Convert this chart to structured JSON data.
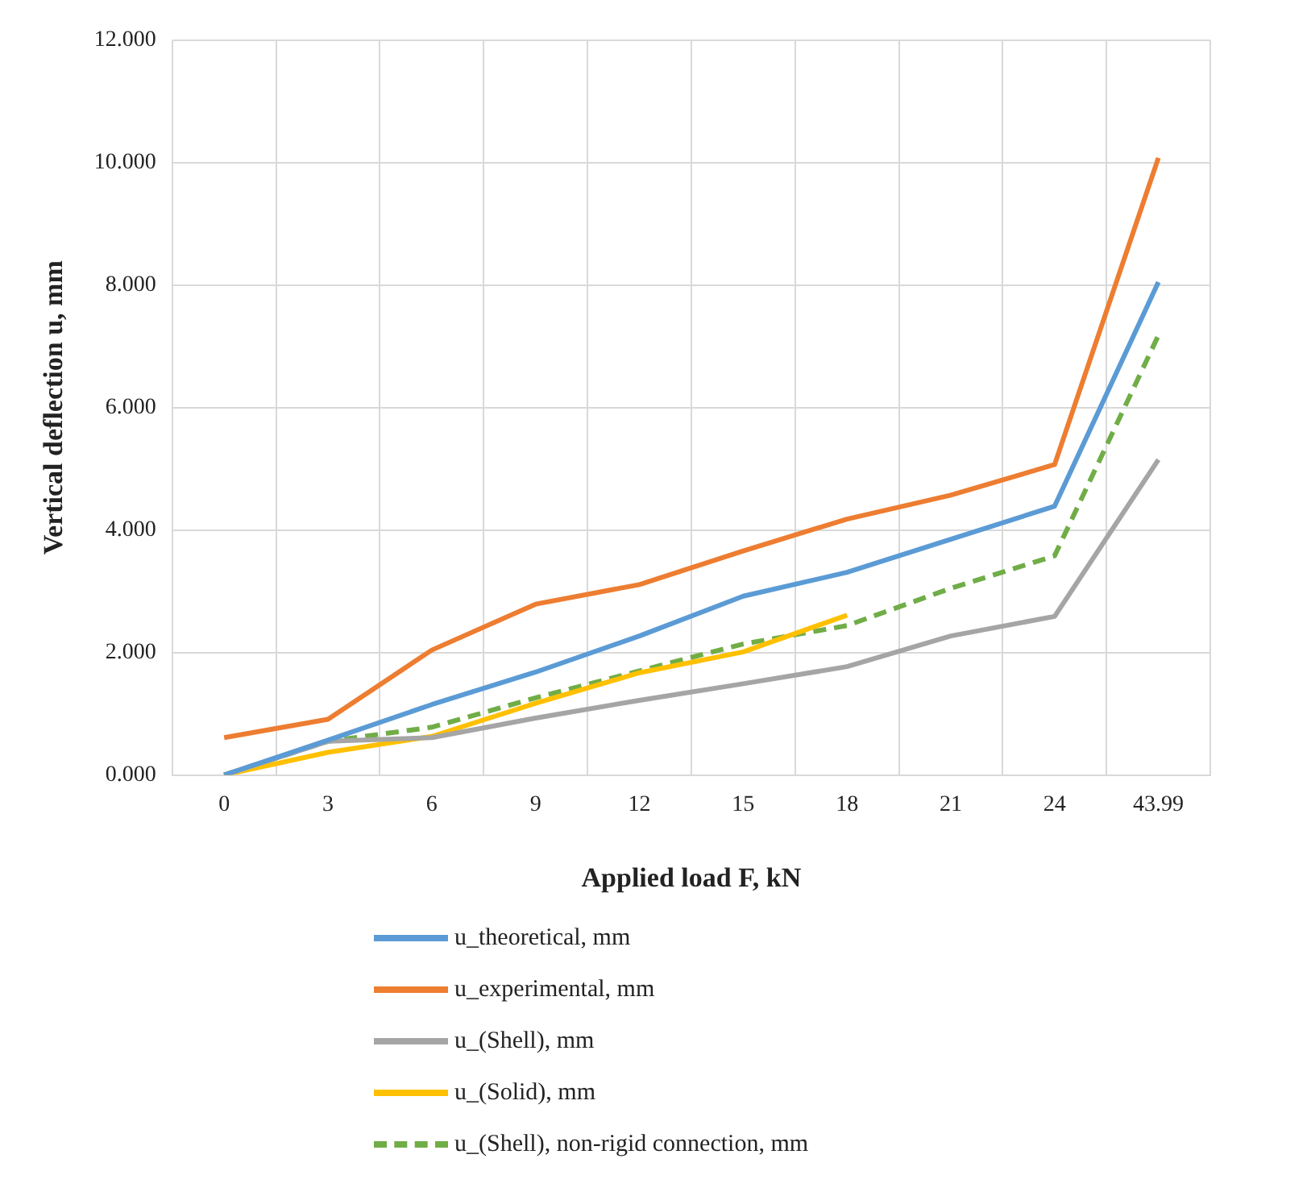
{
  "chart_data": {
    "type": "line",
    "xlabel": "Applied load F, kN",
    "ylabel": "Vertical deflection u, mm",
    "categories": [
      "0",
      "3",
      "6",
      "9",
      "12",
      "15",
      "18",
      "21",
      "24",
      "43.99"
    ],
    "ylim": [
      0,
      12
    ],
    "yticks": [
      {
        "value": 0,
        "label": "0.000"
      },
      {
        "value": 2,
        "label": "2.000"
      },
      {
        "value": 4,
        "label": "4.000"
      },
      {
        "value": 6,
        "label": "6.000"
      },
      {
        "value": 8,
        "label": "8.000"
      },
      {
        "value": 10,
        "label": "10.000"
      },
      {
        "value": 12,
        "label": "12.000"
      }
    ],
    "grid": true,
    "legend": "bottom",
    "marker": "none",
    "series": [
      {
        "name": "u_theoretical, mm",
        "color": "#5b9bd5",
        "values": [
          0,
          0.57,
          1.15,
          1.68,
          2.27,
          2.92,
          3.31,
          3.85,
          4.39,
          8.05
        ]
      },
      {
        "name": "u_experimental, mm",
        "color": "#ed7d31",
        "values": [
          0.61,
          0.91,
          2.04,
          2.79,
          3.11,
          3.66,
          4.18,
          4.57,
          5.07,
          10.08
        ]
      },
      {
        "name": "u_(Shell), mm",
        "color": "#a5a5a5",
        "values": [
          0,
          0.55,
          0.61,
          0.93,
          1.22,
          1.49,
          1.77,
          2.27,
          2.59,
          5.15
        ]
      },
      {
        "name": "u_(Solid), mm",
        "color": "#ffc000",
        "values": [
          0,
          0.37,
          0.63,
          1.17,
          1.67,
          2.01,
          2.61,
          null,
          null,
          null
        ]
      },
      {
        "name": "u_(Shell), non-rigid connection, mm",
        "color": "#70ad47",
        "line_style": "dashed",
        "values": [
          0,
          0.55,
          0.78,
          1.26,
          1.7,
          2.14,
          2.44,
          3.05,
          3.58,
          7.18
        ]
      }
    ]
  }
}
